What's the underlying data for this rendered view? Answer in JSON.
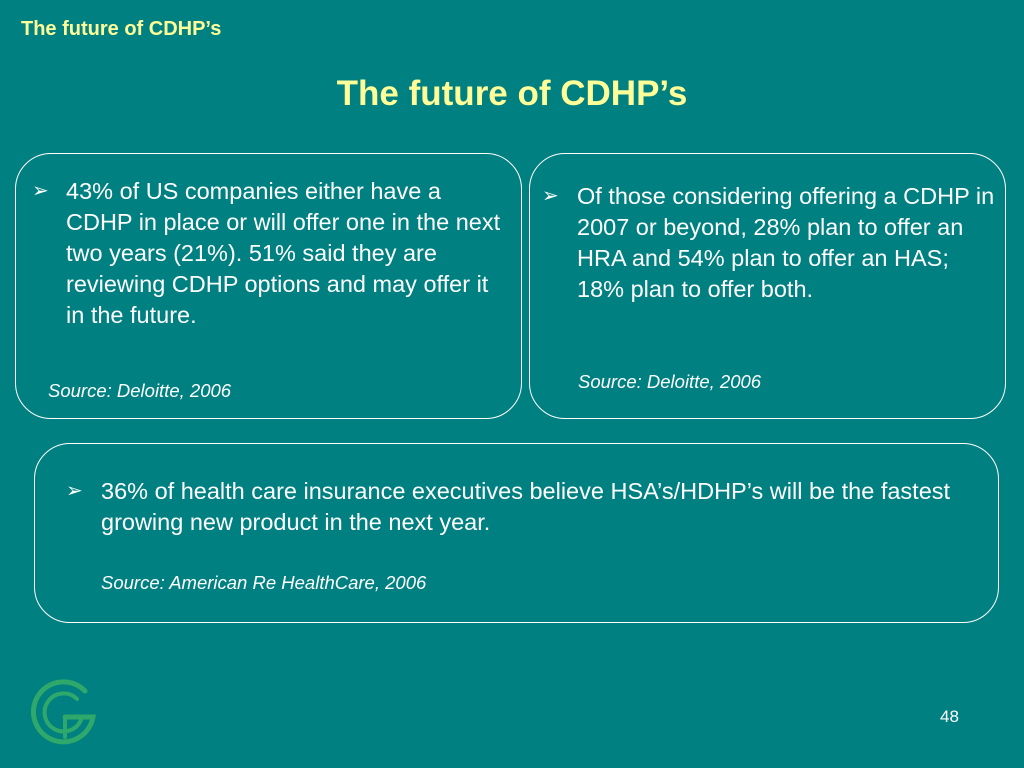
{
  "slide": {
    "header_label": "The future of CDHP’s",
    "title": "The future of CDHP’s",
    "page_number": "48",
    "colors": {
      "background": "#008080",
      "title": "#FFFF99",
      "text": "#FFFFFF",
      "logo": "#2EA86B"
    }
  },
  "boxes": [
    {
      "bullet_icon": "arrow-bullet-icon",
      "bullet_glyph": "➢",
      "text": "43% of US companies either have a CDHP in place or will offer one in the next two years (21%).  51% said they are reviewing CDHP options and may offer it in the future.",
      "source": "Source: Deloitte, 2006"
    },
    {
      "bullet_icon": "arrow-bullet-icon",
      "bullet_glyph": "➢",
      "text": "Of those considering offering a CDHP in 2007 or beyond, 28% plan to offer an HRA and 54% plan to offer an HAS; 18% plan to offer both.",
      "source": "Source: Deloitte, 2006"
    },
    {
      "bullet_icon": "arrow-bullet-icon",
      "bullet_glyph": "➢",
      "text": "36% of health care insurance executives believe HSA’s/HDHP’s will be the fastest growing new product in the next year.",
      "source": "Source: American Re HealthCare, 2006"
    }
  ]
}
